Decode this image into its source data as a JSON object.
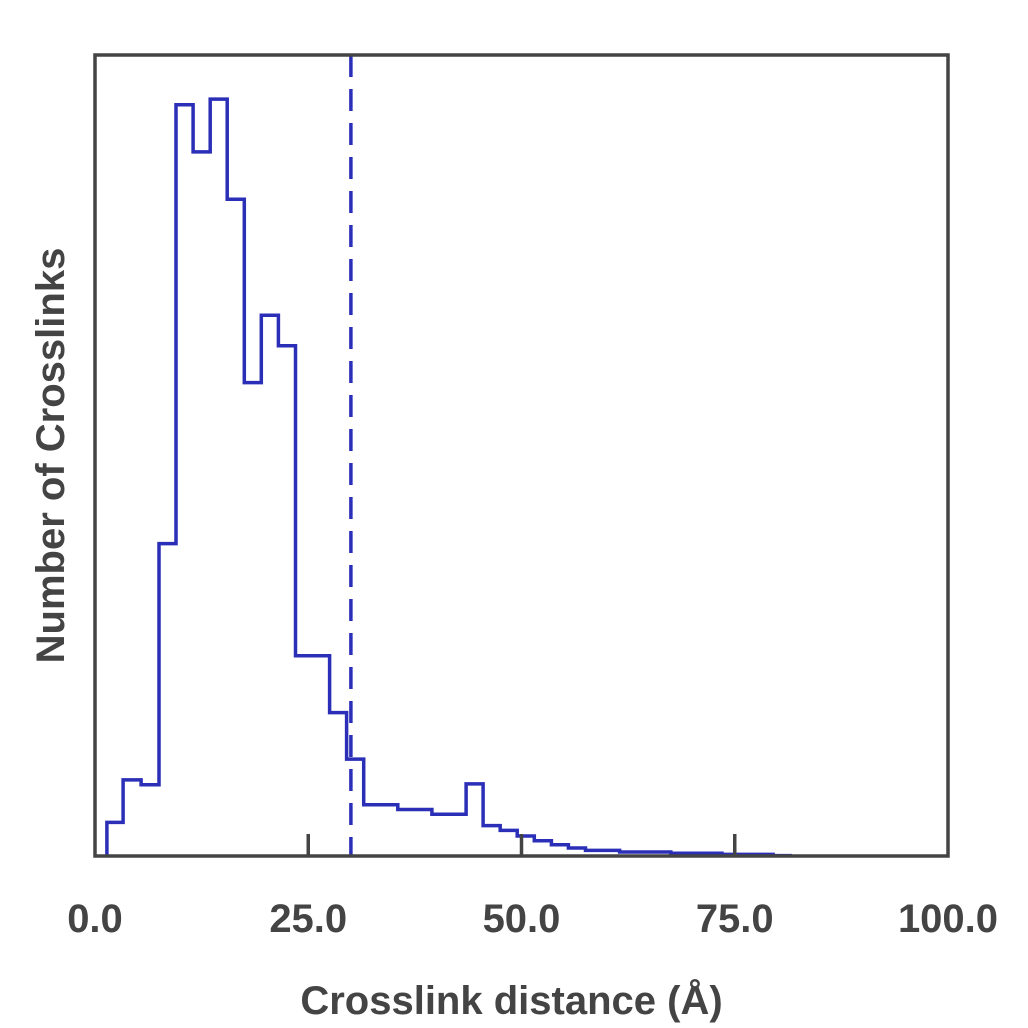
{
  "chart_data": {
    "type": "histogram",
    "title": "",
    "xlabel": "Crosslink distance (Å)",
    "ylabel": "Number of Crosslinks",
    "xlim": [
      0,
      100
    ],
    "ylim": [
      0,
      100
    ],
    "y_ticks_shown": false,
    "grid": false,
    "x_ticks": [
      {
        "value": 0,
        "label": "0.0"
      },
      {
        "value": 25,
        "label": "25.0"
      },
      {
        "value": 50,
        "label": "50.0"
      },
      {
        "value": 75,
        "label": "75.0"
      },
      {
        "value": 100,
        "label": "100.0"
      }
    ],
    "threshold": {
      "x": 30,
      "style": "dashed"
    },
    "series": [
      {
        "color": "#2b2fb8",
        "bins": [
          {
            "x0": 1.4,
            "x1": 3.3,
            "y": 4.2
          },
          {
            "x0": 3.3,
            "x1": 5.4,
            "y": 9.5
          },
          {
            "x0": 5.4,
            "x1": 7.5,
            "y": 8.9
          },
          {
            "x0": 7.5,
            "x1": 9.5,
            "y": 39
          },
          {
            "x0": 9.5,
            "x1": 11.5,
            "y": 93.8
          },
          {
            "x0": 11.5,
            "x1": 13.5,
            "y": 87.9
          },
          {
            "x0": 13.5,
            "x1": 15.5,
            "y": 94.5
          },
          {
            "x0": 15.5,
            "x1": 17.5,
            "y": 82
          },
          {
            "x0": 17.5,
            "x1": 19.5,
            "y": 59.1
          },
          {
            "x0": 19.5,
            "x1": 21.5,
            "y": 67.5
          },
          {
            "x0": 21.5,
            "x1": 23.5,
            "y": 63.7
          },
          {
            "x0": 23.5,
            "x1": 27.5,
            "y": 25
          },
          {
            "x0": 27.5,
            "x1": 29.5,
            "y": 17.9
          },
          {
            "x0": 29.5,
            "x1": 31.5,
            "y": 12.1
          },
          {
            "x0": 31.5,
            "x1": 35.5,
            "y": 6.4
          },
          {
            "x0": 35.5,
            "x1": 39.5,
            "y": 5.8
          },
          {
            "x0": 39.5,
            "x1": 43.5,
            "y": 5.2
          },
          {
            "x0": 43.5,
            "x1": 45.5,
            "y": 9
          },
          {
            "x0": 45.5,
            "x1": 47.5,
            "y": 3.8
          },
          {
            "x0": 47.5,
            "x1": 49.5,
            "y": 3.2
          },
          {
            "x0": 49.5,
            "x1": 51.5,
            "y": 2.5
          },
          {
            "x0": 51.5,
            "x1": 53.5,
            "y": 1.9
          },
          {
            "x0": 53.5,
            "x1": 55.5,
            "y": 1.4
          },
          {
            "x0": 55.5,
            "x1": 57.5,
            "y": 1
          },
          {
            "x0": 57.5,
            "x1": 61.5,
            "y": 0.7
          },
          {
            "x0": 61.5,
            "x1": 67.5,
            "y": 0.5
          },
          {
            "x0": 67.5,
            "x1": 73.5,
            "y": 0.35
          },
          {
            "x0": 73.5,
            "x1": 79.5,
            "y": 0.2
          },
          {
            "x0": 79.5,
            "x1": 81.5,
            "y": 0.05
          }
        ]
      }
    ]
  }
}
